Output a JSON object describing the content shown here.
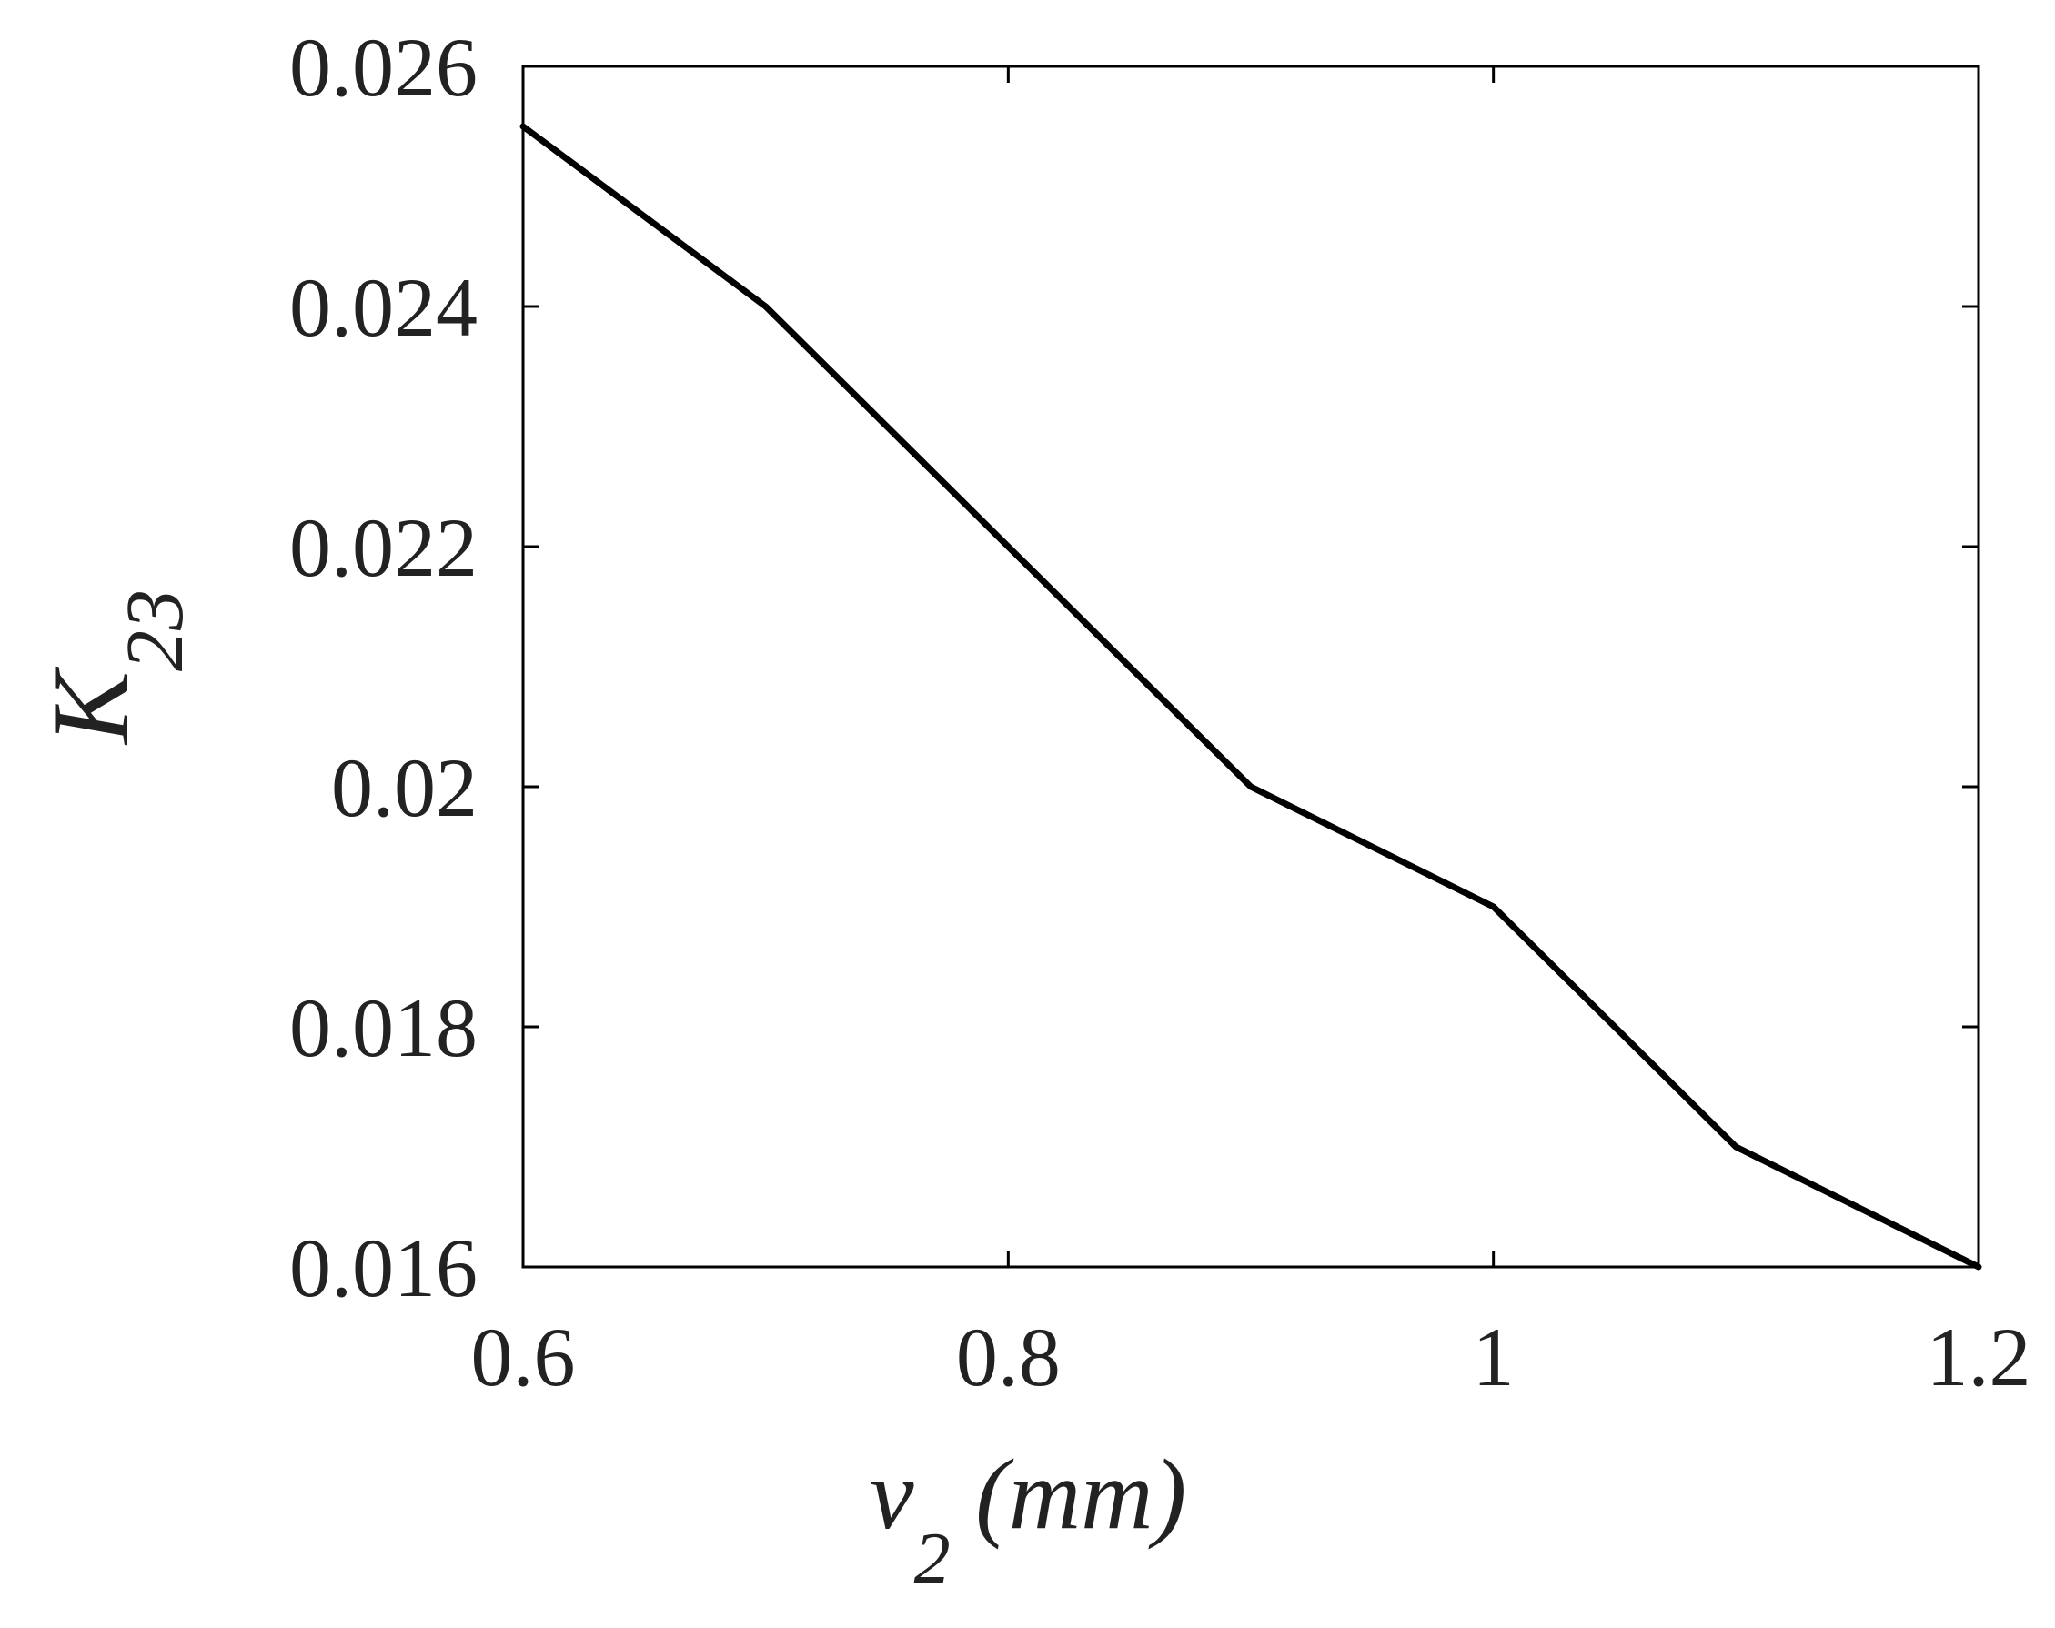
{
  "chart_data": {
    "type": "line",
    "title": "",
    "xlabel": {
      "main": "v",
      "sub": "2",
      "unit": " (mm)"
    },
    "ylabel": {
      "main": "K",
      "sub": "23"
    },
    "xlim": [
      0.6,
      1.2
    ],
    "ylim": [
      0.016,
      0.026
    ],
    "xticks": [
      0.6,
      0.8,
      1.0,
      1.2
    ],
    "xtick_labels": [
      "0.6",
      "0.8",
      "1",
      "1.2"
    ],
    "yticks": [
      0.016,
      0.018,
      0.02,
      0.022,
      0.024,
      0.026
    ],
    "ytick_labels": [
      "0.016",
      "0.018",
      "0.02",
      "0.022",
      "0.024",
      "0.026"
    ],
    "grid": false,
    "series": [
      {
        "color": "#000000",
        "x": [
          0.6,
          0.7,
          0.8,
          0.9,
          1.0,
          1.1,
          1.2
        ],
        "y": [
          0.0255,
          0.024,
          0.022,
          0.02,
          0.019,
          0.017,
          0.016
        ]
      }
    ]
  }
}
